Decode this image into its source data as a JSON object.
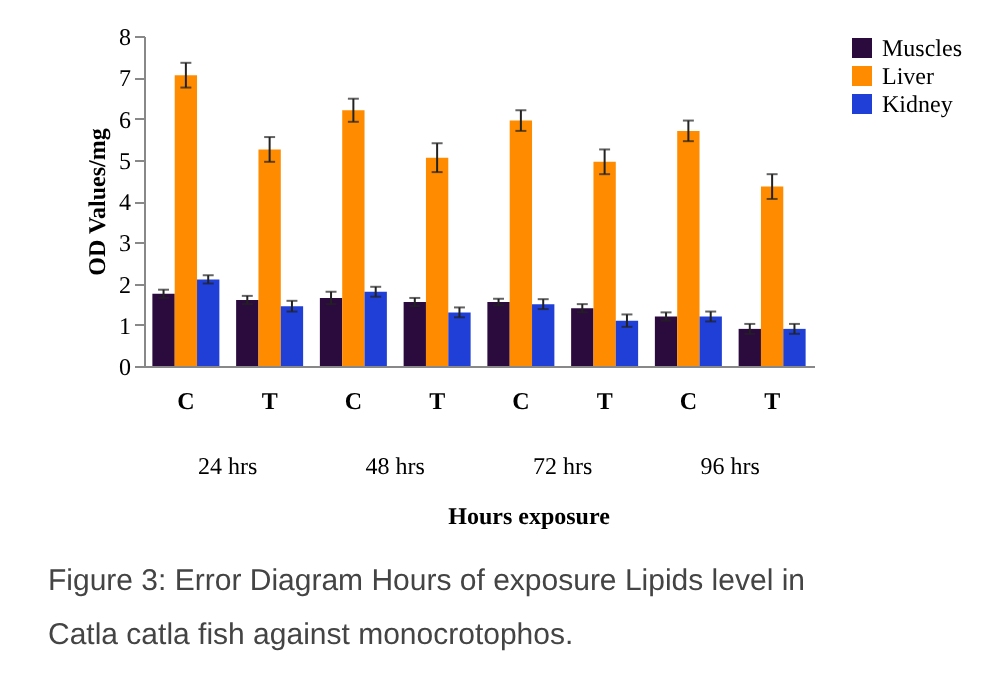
{
  "chart_data": {
    "type": "bar",
    "xlabel": "Hours exposure",
    "ylabel": "OD Values/mg",
    "categories": [
      "C",
      "T",
      "C",
      "T",
      "C",
      "T",
      "C",
      "T"
    ],
    "series": [
      {
        "name": "Muscles",
        "color": "#2b0a3d",
        "values": [
          1.75,
          1.6,
          1.65,
          1.55,
          1.55,
          1.4,
          1.2,
          0.9
        ],
        "errors": [
          0.1,
          0.1,
          0.15,
          0.1,
          0.08,
          0.1,
          0.1,
          0.12
        ]
      },
      {
        "name": "Liver",
        "color": "#ff8c00",
        "values": [
          7.05,
          5.25,
          6.2,
          5.05,
          5.95,
          4.95,
          5.7,
          4.35
        ],
        "errors": [
          0.3,
          0.3,
          0.28,
          0.35,
          0.25,
          0.3,
          0.25,
          0.3
        ]
      },
      {
        "name": "Kidney",
        "color": "#1f3fd6",
        "values": [
          2.1,
          1.45,
          1.8,
          1.3,
          1.5,
          1.1,
          1.2,
          0.9
        ],
        "errors": [
          0.1,
          0.13,
          0.12,
          0.12,
          0.12,
          0.15,
          0.12,
          0.12
        ]
      }
    ],
    "ylim": [
      0,
      8
    ],
    "yticks": [
      0,
      1,
      2,
      3,
      4,
      5,
      6,
      7,
      8
    ],
    "grid": false,
    "legend": "right",
    "annotations": [
      "24 hrs",
      "48 hrs",
      "72 hrs",
      "96 hrs",
      "Figure 3: Error Diagram Hours of exposure Lipids level in Catla catla fish against monocrotophos."
    ]
  }
}
